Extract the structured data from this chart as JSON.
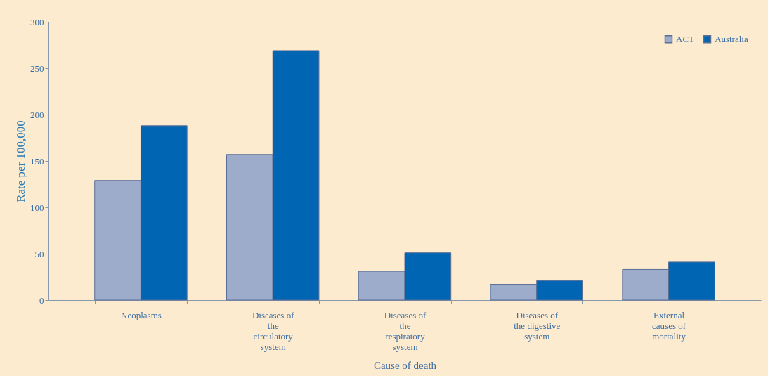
{
  "chart_data": {
    "type": "bar",
    "categories": [
      "Neoplasms",
      "Diseases of the circulatory system",
      "Diseases of the respiratory system",
      "Diseases of the digestive system",
      "External causes of mortality"
    ],
    "series": [
      {
        "name": "ACT",
        "color": "#9daccb",
        "values": [
          129,
          157,
          31,
          17,
          33
        ]
      },
      {
        "name": "Australia",
        "color": "#0066b3",
        "values": [
          188,
          269,
          51,
          21,
          41
        ]
      }
    ],
    "xlabel": "Cause of death",
    "ylabel": "Rate per 100,000",
    "ylim": [
      0,
      300
    ],
    "yticks": [
      0,
      50,
      100,
      150,
      200,
      250,
      300
    ],
    "grid": false,
    "legend": "top right"
  }
}
